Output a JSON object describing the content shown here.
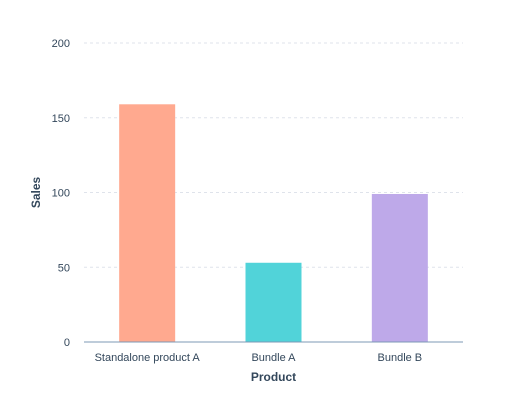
{
  "chart_data": {
    "type": "bar",
    "categories": [
      "Standalone product A",
      "Bundle A",
      "Bundle B"
    ],
    "values": [
      159,
      53,
      99
    ],
    "xlabel": "Product",
    "ylabel": "Sales",
    "ylim": [
      0,
      200
    ],
    "yticks": [
      0,
      50,
      100,
      150,
      200
    ],
    "grid": true,
    "legend": "none",
    "colors": {
      "bars": [
        "#ffa98f",
        "#51d3d9",
        "#bea9e9"
      ],
      "grid": "#dfe3eb",
      "axis": "#7c98b6",
      "text": "#33475b"
    }
  }
}
